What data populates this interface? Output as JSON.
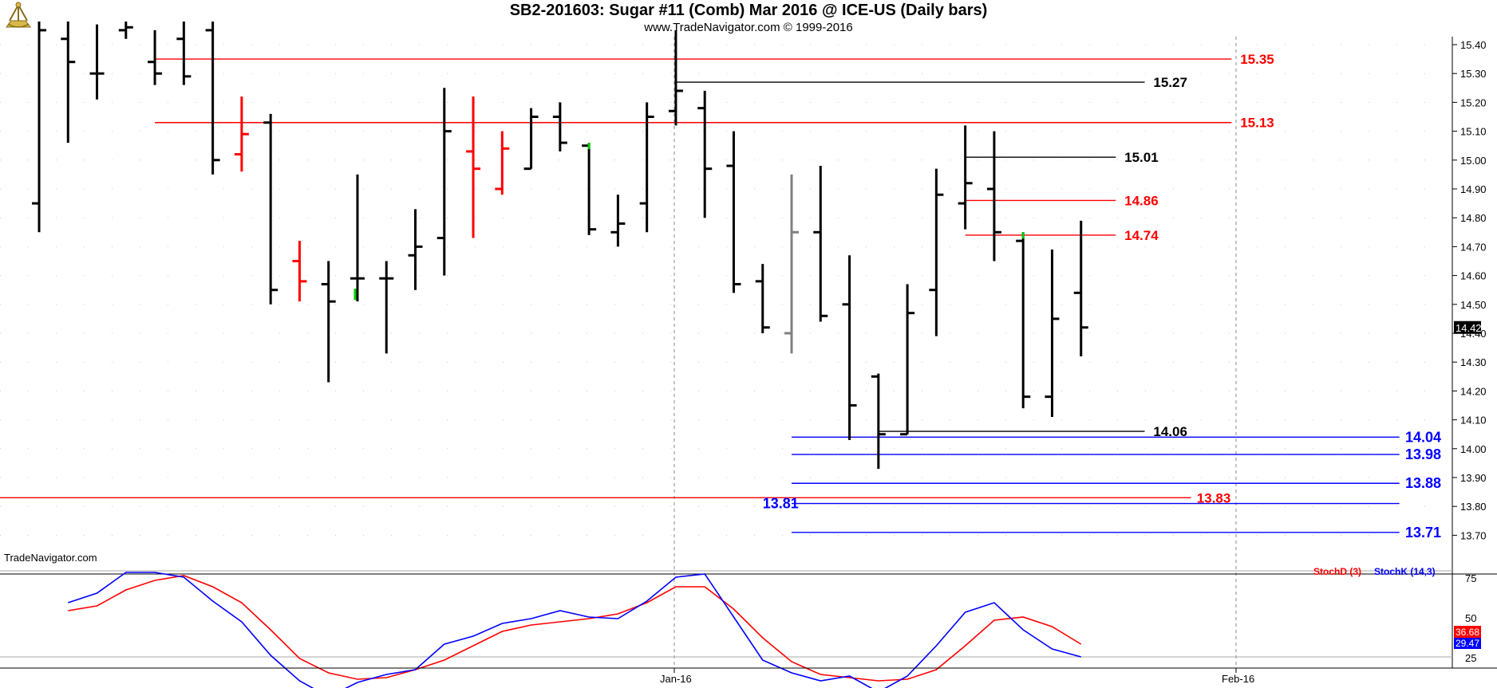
{
  "header": {
    "title": "SB2-201603:  Sugar #11 (Comb) Mar 2016 @ ICE-US  (Daily bars)",
    "subtitle": "www.TradeNavigator.com © 1999-2016",
    "logo_icon": "sextant-logo-icon"
  },
  "chart_data": [
    {
      "type": "ohlc",
      "ylim": [
        13.64,
        15.51
      ],
      "yticks": [
        "15.40",
        "15.30",
        "15.20",
        "15.10",
        "15.00",
        "14.90",
        "14.80",
        "14.70",
        "14.60",
        "14.50",
        "14.40",
        "14.30",
        "14.20",
        "14.10",
        "14.00",
        "13.90",
        "13.80",
        "13.70"
      ],
      "xticks": [
        "Jan-16",
        "Feb-16"
      ],
      "watermark": "TradeNavigator.com",
      "last_price": "14.42",
      "colors": {
        "up": "#000000",
        "red": "#ff0000",
        "gray": "#808080",
        "green": "#00cc00",
        "level_red": "#ff0000",
        "level_blue": "#0000ff",
        "level_black": "#000000"
      },
      "bars": [
        {
          "o": 14.85,
          "h": 15.48,
          "l": 14.75,
          "c": 15.45,
          "color": "black"
        },
        {
          "o": 15.42,
          "h": 15.48,
          "l": 15.06,
          "c": 15.34,
          "color": "black"
        },
        {
          "o": 15.3,
          "h": 15.47,
          "l": 15.21,
          "c": 15.3,
          "color": "black"
        },
        {
          "o": 15.45,
          "h": 15.48,
          "l": 15.42,
          "c": 15.46,
          "color": "black"
        },
        {
          "o": 15.34,
          "h": 15.45,
          "l": 15.26,
          "c": 15.3,
          "color": "black"
        },
        {
          "o": 15.42,
          "h": 15.48,
          "l": 15.26,
          "c": 15.29,
          "color": "black"
        },
        {
          "o": 15.45,
          "h": 15.48,
          "l": 14.95,
          "c": 15.0,
          "color": "black"
        },
        {
          "o": 15.02,
          "h": 15.22,
          "l": 14.96,
          "c": 15.09,
          "color": "red"
        },
        {
          "o": 15.13,
          "h": 15.16,
          "l": 14.5,
          "c": 14.55,
          "color": "black"
        },
        {
          "o": 14.65,
          "h": 14.72,
          "l": 14.51,
          "c": 14.58,
          "color": "red"
        },
        {
          "o": 14.57,
          "h": 14.65,
          "l": 14.23,
          "c": 14.51,
          "color": "black"
        },
        {
          "o": 14.59,
          "h": 14.95,
          "l": 14.51,
          "c": 14.59,
          "color": "black",
          "greenlow": true
        },
        {
          "o": 14.59,
          "h": 14.65,
          "l": 14.33,
          "c": 14.59,
          "color": "black"
        },
        {
          "o": 14.67,
          "h": 14.83,
          "l": 14.55,
          "c": 14.7,
          "color": "black"
        },
        {
          "o": 14.73,
          "h": 15.25,
          "l": 14.6,
          "c": 15.1,
          "color": "black"
        },
        {
          "o": 15.03,
          "h": 15.22,
          "l": 14.73,
          "c": 14.97,
          "color": "red"
        },
        {
          "o": 14.9,
          "h": 15.1,
          "l": 14.88,
          "c": 15.04,
          "color": "red"
        },
        {
          "o": 14.97,
          "h": 15.18,
          "l": 14.97,
          "c": 15.15,
          "color": "black"
        },
        {
          "o": 15.15,
          "h": 15.2,
          "l": 15.03,
          "c": 15.06,
          "color": "black"
        },
        {
          "o": 15.05,
          "h": 15.06,
          "l": 14.74,
          "c": 14.76,
          "color": "black",
          "greenhigh": true
        },
        {
          "o": 14.75,
          "h": 14.88,
          "l": 14.7,
          "c": 14.78,
          "color": "black"
        },
        {
          "o": 14.85,
          "h": 15.2,
          "l": 14.75,
          "c": 15.15,
          "color": "black"
        },
        {
          "o": 15.17,
          "h": 15.45,
          "l": 15.12,
          "c": 15.24,
          "color": "black"
        },
        {
          "o": 15.18,
          "h": 15.24,
          "l": 14.8,
          "c": 14.97,
          "color": "black"
        },
        {
          "o": 14.98,
          "h": 15.1,
          "l": 14.54,
          "c": 14.57,
          "color": "black"
        },
        {
          "o": 14.58,
          "h": 14.64,
          "l": 14.4,
          "c": 14.42,
          "color": "black"
        },
        {
          "o": 14.4,
          "h": 14.95,
          "l": 14.33,
          "c": 14.75,
          "color": "gray"
        },
        {
          "o": 14.75,
          "h": 14.98,
          "l": 14.44,
          "c": 14.46,
          "color": "black"
        },
        {
          "o": 14.5,
          "h": 14.67,
          "l": 14.03,
          "c": 14.15,
          "color": "black"
        },
        {
          "o": 14.25,
          "h": 14.26,
          "l": 13.93,
          "c": 14.05,
          "color": "black"
        },
        {
          "o": 14.05,
          "h": 14.57,
          "l": 14.05,
          "c": 14.47,
          "color": "black"
        },
        {
          "o": 14.55,
          "h": 14.97,
          "l": 14.39,
          "c": 14.88,
          "color": "black"
        },
        {
          "o": 14.85,
          "h": 15.12,
          "l": 14.76,
          "c": 14.92,
          "color": "black"
        },
        {
          "o": 14.9,
          "h": 15.1,
          "l": 14.65,
          "c": 14.75,
          "color": "black"
        },
        {
          "o": 14.72,
          "h": 14.75,
          "l": 14.14,
          "c": 14.18,
          "color": "black",
          "greenhigh": true
        },
        {
          "o": 14.18,
          "h": 14.69,
          "l": 14.11,
          "c": 14.45,
          "color": "black"
        },
        {
          "o": 14.54,
          "h": 14.79,
          "l": 14.32,
          "c": 14.42,
          "color": "black"
        }
      ],
      "levels": [
        {
          "value": 15.35,
          "label": "15.35",
          "color": "red",
          "from": 4,
          "to": 41.2,
          "label_at": 41.5
        },
        {
          "value": 15.27,
          "label": "15.27",
          "color": "black",
          "from": 22,
          "to": 38.2,
          "label_at": 38.5
        },
        {
          "value": 15.13,
          "label": "15.13",
          "color": "red",
          "from": 4,
          "to": 41.2,
          "label_at": 41.5
        },
        {
          "value": 15.01,
          "label": "15.01",
          "color": "black",
          "from": 32,
          "to": 37.2,
          "label_at": 37.5
        },
        {
          "value": 14.86,
          "label": "14.86",
          "color": "red",
          "from": 32,
          "to": 37.2,
          "label_at": 37.5
        },
        {
          "value": 14.74,
          "label": "14.74",
          "color": "red",
          "from": 32,
          "to": 37.2,
          "label_at": 37.5
        },
        {
          "value": 14.06,
          "label": "14.06",
          "color": "black",
          "from": 29,
          "to": 38.2,
          "label_at": 38.5
        },
        {
          "value": 14.04,
          "label": "14.04",
          "color": "blue",
          "from": 26,
          "to": 47.0,
          "label_at": 47.2
        },
        {
          "value": 13.98,
          "label": "13.98",
          "color": "blue",
          "from": 26,
          "to": 47.0,
          "label_at": 47.2
        },
        {
          "value": 13.88,
          "label": "13.88",
          "color": "blue",
          "from": 26,
          "to": 47.0,
          "label_at": 47.2
        },
        {
          "value": 13.83,
          "label": "13.83",
          "color": "red",
          "from": -1.5,
          "to": 39.8,
          "label_at": 40.0
        },
        {
          "value": 13.81,
          "label": "13.81",
          "color": "blue",
          "from": 26,
          "to": 47.0,
          "label_at": 25.0
        },
        {
          "value": 13.71,
          "label": "13.71",
          "color": "blue",
          "from": 26,
          "to": 47.0,
          "label_at": 47.2
        }
      ]
    },
    {
      "type": "line",
      "title_d": "StochD (3)",
      "title_k": "StochK (14,3)",
      "ylim": [
        0,
        100
      ],
      "yticks": [
        "75",
        "50",
        "25"
      ],
      "last_d": "36.68",
      "last_k": "29.47",
      "series": [
        {
          "name": "StochD (3)",
          "color": "#ff0000",
          "values": [
            57,
            60,
            70,
            76,
            79,
            72,
            62,
            45,
            27,
            18,
            14,
            15,
            20,
            26,
            35,
            44,
            48,
            50,
            52,
            55,
            62,
            72,
            72,
            58,
            40,
            25,
            17,
            15,
            13,
            14,
            20,
            35,
            51,
            53,
            47,
            36
          ]
        },
        {
          "name": "StochK (14,3)",
          "color": "#0000ff",
          "values": [
            62,
            68,
            81,
            81,
            78,
            63,
            50,
            29,
            13,
            3,
            12,
            17,
            20,
            36,
            41,
            49,
            52,
            57,
            53,
            52,
            63,
            78,
            80,
            53,
            26,
            18,
            13,
            16,
            6,
            16,
            35,
            56,
            62,
            45,
            33,
            28
          ]
        }
      ]
    }
  ]
}
